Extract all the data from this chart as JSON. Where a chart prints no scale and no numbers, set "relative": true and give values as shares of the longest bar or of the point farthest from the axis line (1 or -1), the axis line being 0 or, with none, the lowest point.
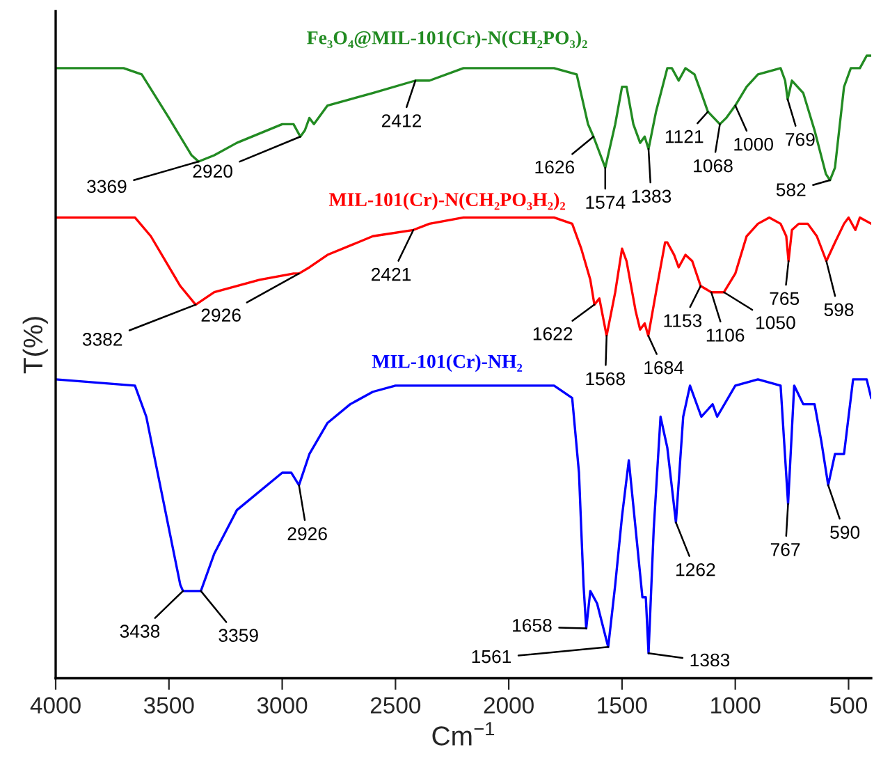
{
  "chart_data": {
    "type": "line",
    "relative": true,
    "xlabel": "Cm$^{−1}$",
    "ylabel": "T(%)",
    "xlim": [
      4000,
      400
    ],
    "xticks": [
      4000,
      3500,
      3000,
      2500,
      2000,
      1500,
      1000,
      500
    ],
    "grid": false,
    "legend": false,
    "line_style": "solid",
    "series": [
      {
        "name": "Fe₃O₄@MIL-101(Cr)-N(CH₂PO₃)₂",
        "color": "#228b22",
        "x": [
          4000,
          3700,
          3620,
          3500,
          3400,
          3369,
          3300,
          3200,
          3000,
          2950,
          2920,
          2900,
          2880,
          2860,
          2800,
          2600,
          2412,
          2350,
          2200,
          2000,
          1800,
          1700,
          1650,
          1626,
          1574,
          1530,
          1500,
          1480,
          1450,
          1420,
          1400,
          1383,
          1350,
          1300,
          1280,
          1250,
          1220,
          1180,
          1150,
          1121,
          1068,
          1040,
          1000,
          950,
          900,
          800,
          780,
          769,
          750,
          700,
          650,
          600,
          582,
          560,
          520,
          490,
          450,
          420,
          400
        ],
        "values": [
          0.98,
          0.98,
          0.97,
          0.9,
          0.84,
          0.83,
          0.84,
          0.86,
          0.89,
          0.89,
          0.87,
          0.88,
          0.9,
          0.89,
          0.92,
          0.94,
          0.96,
          0.96,
          0.98,
          0.98,
          0.98,
          0.97,
          0.89,
          0.87,
          0.82,
          0.89,
          0.95,
          0.95,
          0.89,
          0.86,
          0.87,
          0.85,
          0.91,
          0.98,
          0.98,
          0.96,
          0.98,
          0.97,
          0.94,
          0.91,
          0.89,
          0.9,
          0.92,
          0.95,
          0.97,
          0.98,
          0.96,
          0.93,
          0.96,
          0.94,
          0.88,
          0.81,
          0.8,
          0.82,
          0.95,
          0.98,
          0.98,
          1.0,
          1.0
        ]
      },
      {
        "name": "MIL-101(Cr)-N(CH₂PO₃H₂)₂",
        "color": "#ff0000",
        "x": [
          4000,
          3650,
          3580,
          3450,
          3382,
          3300,
          3100,
          2950,
          2926,
          2880,
          2800,
          2600,
          2421,
          2350,
          2200,
          1800,
          1720,
          1680,
          1640,
          1622,
          1600,
          1568,
          1530,
          1500,
          1480,
          1440,
          1420,
          1400,
          1384,
          1350,
          1310,
          1300,
          1270,
          1250,
          1220,
          1190,
          1153,
          1106,
          1050,
          1000,
          950,
          900,
          850,
          800,
          775,
          765,
          750,
          720,
          680,
          640,
          598,
          560,
          520,
          500,
          470,
          450,
          400
        ],
        "values": [
          0.74,
          0.74,
          0.71,
          0.63,
          0.6,
          0.62,
          0.64,
          0.65,
          0.65,
          0.66,
          0.68,
          0.71,
          0.72,
          0.73,
          0.74,
          0.74,
          0.73,
          0.69,
          0.64,
          0.6,
          0.61,
          0.55,
          0.62,
          0.69,
          0.67,
          0.59,
          0.56,
          0.57,
          0.55,
          0.62,
          0.7,
          0.7,
          0.68,
          0.66,
          0.68,
          0.67,
          0.63,
          0.62,
          0.62,
          0.65,
          0.71,
          0.73,
          0.74,
          0.73,
          0.71,
          0.67,
          0.72,
          0.73,
          0.73,
          0.71,
          0.67,
          0.7,
          0.73,
          0.74,
          0.72,
          0.74,
          0.73
        ]
      },
      {
        "name": "MIL-101(Cr)-NH₂",
        "color": "#0000ff",
        "x": [
          4000,
          3650,
          3600,
          3550,
          3500,
          3450,
          3438,
          3400,
          3359,
          3300,
          3200,
          3000,
          2960,
          2926,
          2880,
          2800,
          2700,
          2600,
          2500,
          1800,
          1720,
          1690,
          1670,
          1658,
          1640,
          1610,
          1561,
          1530,
          1500,
          1470,
          1440,
          1410,
          1395,
          1383,
          1360,
          1330,
          1300,
          1262,
          1230,
          1200,
          1150,
          1100,
          1080,
          1000,
          900,
          800,
          767,
          740,
          700,
          650,
          620,
          590,
          560,
          520,
          480,
          420,
          400
        ],
        "values": [
          0.48,
          0.47,
          0.42,
          0.33,
          0.24,
          0.15,
          0.14,
          0.14,
          0.14,
          0.2,
          0.27,
          0.33,
          0.33,
          0.31,
          0.36,
          0.41,
          0.44,
          0.46,
          0.47,
          0.47,
          0.45,
          0.33,
          0.15,
          0.08,
          0.14,
          0.12,
          0.05,
          0.15,
          0.26,
          0.35,
          0.24,
          0.13,
          0.13,
          0.04,
          0.24,
          0.42,
          0.37,
          0.25,
          0.42,
          0.47,
          0.42,
          0.44,
          0.42,
          0.47,
          0.48,
          0.47,
          0.28,
          0.47,
          0.44,
          0.44,
          0.38,
          0.31,
          0.36,
          0.36,
          0.48,
          0.48,
          0.45
        ]
      }
    ],
    "annotations": [
      {
        "text": "3369",
        "x": 3369,
        "y": 0.83
      },
      {
        "text": "2920",
        "x": 2920,
        "y": 0.87
      },
      {
        "text": "2412",
        "x": 2412,
        "y": 0.96
      },
      {
        "text": "1626",
        "x": 1626,
        "y": 0.87
      },
      {
        "text": "1574",
        "x": 1574,
        "y": 0.82
      },
      {
        "text": "1383",
        "x": 1383,
        "y": 0.85
      },
      {
        "text": "1121",
        "x": 1121,
        "y": 0.91
      },
      {
        "text": "1068",
        "x": 1068,
        "y": 0.89
      },
      {
        "text": "1000",
        "x": 1000,
        "y": 0.92
      },
      {
        "text": "769",
        "x": 769,
        "y": 0.93
      },
      {
        "text": "582",
        "x": 582,
        "y": 0.8
      },
      {
        "text": "3382",
        "x": 3382,
        "y": 0.6
      },
      {
        "text": "2926",
        "x": 2926,
        "y": 0.65
      },
      {
        "text": "2421",
        "x": 2421,
        "y": 0.72
      },
      {
        "text": "1622",
        "x": 1622,
        "y": 0.6
      },
      {
        "text": "1568",
        "x": 1568,
        "y": 0.55
      },
      {
        "text": "1684",
        "x": 1384,
        "y": 0.55
      },
      {
        "text": "1153",
        "x": 1153,
        "y": 0.63
      },
      {
        "text": "1106",
        "x": 1106,
        "y": 0.62
      },
      {
        "text": "1050",
        "x": 1050,
        "y": 0.62
      },
      {
        "text": "765",
        "x": 765,
        "y": 0.67
      },
      {
        "text": "598",
        "x": 598,
        "y": 0.67
      },
      {
        "text": "3438",
        "x": 3438,
        "y": 0.14
      },
      {
        "text": "3359",
        "x": 3359,
        "y": 0.14
      },
      {
        "text": "2926",
        "x": 2926,
        "y": 0.31
      },
      {
        "text": "1658",
        "x": 1658,
        "y": 0.08
      },
      {
        "text": "1561",
        "x": 1561,
        "y": 0.05
      },
      {
        "text": "1383",
        "x": 1383,
        "y": 0.04
      },
      {
        "text": "1262",
        "x": 1262,
        "y": 0.25
      },
      {
        "text": "767",
        "x": 767,
        "y": 0.28
      },
      {
        "text": "590",
        "x": 590,
        "y": 0.31
      }
    ]
  }
}
